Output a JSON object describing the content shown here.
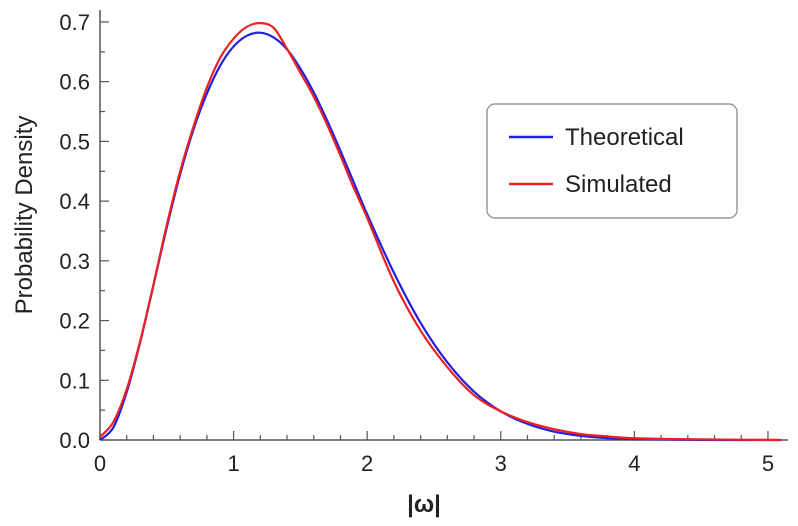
{
  "chart_data": {
    "type": "line",
    "title": "",
    "xlabel": "|ω|",
    "ylabel": "Probability Density",
    "xlim": [
      0,
      5.15
    ],
    "ylim": [
      0,
      0.72
    ],
    "x_ticks": [
      0,
      1,
      2,
      3,
      4,
      5
    ],
    "x_tick_labels": [
      "0",
      "1",
      "2",
      "3",
      "4",
      "5"
    ],
    "y_ticks": [
      0.0,
      0.1,
      0.2,
      0.3,
      0.4,
      0.5,
      0.6,
      0.7
    ],
    "y_tick_labels": [
      "0.0",
      "0.1",
      "0.2",
      "0.3",
      "0.4",
      "0.5",
      "0.6",
      "0.7"
    ],
    "grid": false,
    "legend": {
      "position": "right"
    },
    "series": [
      {
        "name": "Theoretical",
        "color": "#2020e0",
        "x": [
          0,
          0.1,
          0.2,
          0.3,
          0.4,
          0.5,
          0.6,
          0.7,
          0.8,
          0.9,
          1.0,
          1.1,
          1.2,
          1.3,
          1.4,
          1.5,
          1.6,
          1.7,
          1.8,
          1.9,
          2.0,
          2.2,
          2.4,
          2.6,
          2.8,
          3.0,
          3.2,
          3.4,
          3.6,
          3.8,
          4.0,
          4.5,
          5.1
        ],
        "y": [
          0,
          0.021,
          0.08,
          0.163,
          0.259,
          0.356,
          0.445,
          0.52,
          0.58,
          0.627,
          0.659,
          0.677,
          0.682,
          0.674,
          0.654,
          0.622,
          0.582,
          0.535,
          0.484,
          0.431,
          0.378,
          0.28,
          0.196,
          0.13,
          0.081,
          0.048,
          0.027,
          0.014,
          0.007,
          0.003,
          0.0015,
          0.0002,
          0
        ]
      },
      {
        "name": "Simulated",
        "color": "#ee2020",
        "x": [
          0,
          0.1,
          0.2,
          0.3,
          0.4,
          0.5,
          0.6,
          0.7,
          0.8,
          0.9,
          1.0,
          1.1,
          1.2,
          1.3,
          1.4,
          1.5,
          1.6,
          1.7,
          1.8,
          1.9,
          2.0,
          2.2,
          2.4,
          2.6,
          2.8,
          3.0,
          3.2,
          3.4,
          3.6,
          3.8,
          4.0,
          4.5,
          5.1
        ],
        "y": [
          0.005,
          0.03,
          0.085,
          0.165,
          0.26,
          0.36,
          0.45,
          0.525,
          0.59,
          0.64,
          0.672,
          0.692,
          0.698,
          0.69,
          0.655,
          0.615,
          0.575,
          0.528,
          0.476,
          0.422,
          0.372,
          0.265,
          0.183,
          0.122,
          0.075,
          0.048,
          0.03,
          0.018,
          0.01,
          0.006,
          0.003,
          0.001,
          0
        ]
      }
    ]
  }
}
